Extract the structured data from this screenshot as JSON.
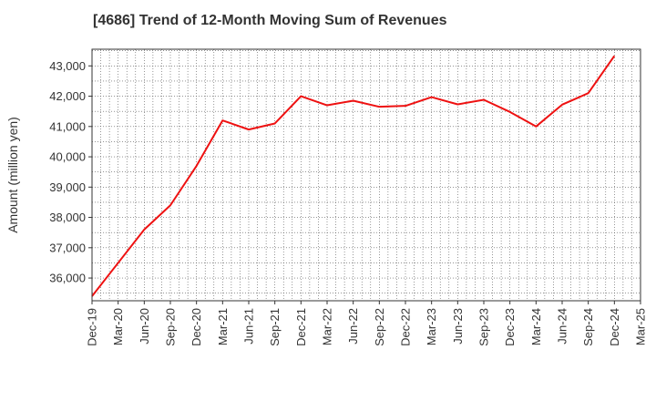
{
  "chart_data": {
    "type": "line",
    "title": "[4686]  Trend of 12-Month Moving Sum of Revenues",
    "ylabel": "Amount (million yen)",
    "xlabel": "",
    "x_tick_labels": [
      "Dec-19",
      "Mar-20",
      "Jun-20",
      "Sep-20",
      "Dec-20",
      "Mar-21",
      "Jun-21",
      "Sep-21",
      "Dec-21",
      "Mar-22",
      "Jun-22",
      "Sep-22",
      "Dec-22",
      "Mar-23",
      "Jun-23",
      "Sep-23",
      "Dec-23",
      "Mar-24",
      "Jun-24",
      "Sep-24",
      "Dec-24",
      "Mar-25"
    ],
    "y_ticks": [
      36000,
      37000,
      38000,
      39000,
      40000,
      41000,
      42000,
      43000
    ],
    "y_tick_labels": [
      "36,000",
      "37,000",
      "38,000",
      "39,000",
      "40,000",
      "41,000",
      "42,000",
      "43,000"
    ],
    "ylim": [
      35250,
      43550
    ],
    "grid": true,
    "line_color": "#ee1111",
    "series": [
      {
        "x": [
          "Dec-19",
          "Mar-20",
          "Jun-20",
          "Sep-20",
          "Dec-20",
          "Mar-21",
          "Jun-21",
          "Sep-21",
          "Dec-21",
          "Mar-22",
          "Jun-22",
          "Sep-22",
          "Dec-22",
          "Mar-23",
          "Jun-23",
          "Sep-23",
          "Dec-23",
          "Mar-24",
          "Jun-24",
          "Sep-24",
          "Dec-24"
        ],
        "values": [
          35400,
          36500,
          37600,
          38400,
          39700,
          41200,
          40900,
          41100,
          42000,
          41700,
          41850,
          41650,
          41680,
          41970,
          41730,
          41880,
          41480,
          41000,
          41720,
          42100,
          43330
        ]
      }
    ]
  }
}
